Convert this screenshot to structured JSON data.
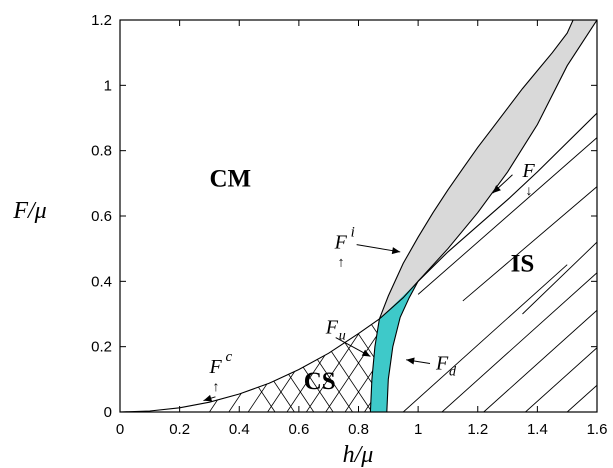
{
  "chart_data": {
    "type": "line",
    "xlabel": "h/μ",
    "ylabel": "F/μ",
    "xlim": [
      0,
      1.6
    ],
    "ylim": [
      0,
      1.2
    ],
    "x_ticks": [
      "0",
      "0.2",
      "0.4",
      "0.6",
      "0.8",
      "1",
      "1.2",
      "1.4",
      "1.6"
    ],
    "y_ticks": [
      "0",
      "0.2",
      "0.4",
      "0.6",
      "0.8",
      "1",
      "1.2"
    ],
    "grid": false,
    "regions": [
      {
        "label": "CM",
        "x": 0.37,
        "y": 0.69
      },
      {
        "label": "CS",
        "x": 0.67,
        "y": 0.07
      },
      {
        "label": "IS",
        "x": 1.35,
        "y": 0.43
      }
    ],
    "series": [
      {
        "key": "Fc",
        "x": [
          0,
          0.1,
          0.2,
          0.3,
          0.4,
          0.5,
          0.6,
          0.7,
          0.8,
          0.87
        ],
        "y": [
          0,
          0.003,
          0.013,
          0.03,
          0.055,
          0.088,
          0.13,
          0.18,
          0.24,
          0.285
        ]
      },
      {
        "key": "Fi",
        "x": [
          0.87,
          0.9,
          0.95,
          1.0,
          1.05,
          1.1,
          1.15,
          1.2,
          1.25,
          1.3,
          1.35,
          1.4,
          1.45,
          1.5,
          1.52
        ],
        "y": [
          0.285,
          0.355,
          0.455,
          0.535,
          0.61,
          0.68,
          0.745,
          0.81,
          0.87,
          0.93,
          0.99,
          1.045,
          1.1,
          1.16,
          1.2
        ]
      },
      {
        "key": "Fdown",
        "x": [
          0.87,
          0.95,
          1.0,
          1.1,
          1.2,
          1.3,
          1.4,
          1.5,
          1.6
        ],
        "y": [
          0.285,
          0.35,
          0.4,
          0.49,
          0.57,
          0.65,
          0.735,
          0.825,
          0.915
        ]
      },
      {
        "key": "Fu",
        "x": [
          0.84,
          0.845,
          0.855,
          0.87
        ],
        "y": [
          0,
          0.1,
          0.2,
          0.285
        ]
      },
      {
        "key": "Fd",
        "x": [
          0.895,
          0.9,
          0.915,
          0.94,
          0.97,
          1.0
        ],
        "y": [
          0,
          0.1,
          0.2,
          0.29,
          0.35,
          0.4
        ]
      },
      {
        "key": "IS_left",
        "x": [
          0.84,
          0.845,
          0.855,
          0.87
        ],
        "y": [
          0,
          0.1,
          0.2,
          0.285
        ]
      },
      {
        "key": "upper_band",
        "x": [
          1.0,
          1.1,
          1.2,
          1.3,
          1.4,
          1.5,
          1.6
        ],
        "y": [
          0.4,
          0.5,
          0.61,
          0.735,
          0.88,
          1.06,
          1.2
        ]
      }
    ],
    "annotations": [
      {
        "key": "Fc",
        "base": "F",
        "sup": "c",
        "arrow": "↑",
        "x": 0.3,
        "y": 0.12
      },
      {
        "key": "Fi",
        "base": "F",
        "sup": "i",
        "arrow": "↑",
        "x": 0.72,
        "y": 0.5
      },
      {
        "key": "Fdown",
        "base": "F",
        "arrow": "↓",
        "x": 1.35,
        "y": 0.72
      },
      {
        "key": "Fu",
        "base": "F",
        "sub": "u",
        "x": 0.69,
        "y": 0.24
      },
      {
        "key": "Fd",
        "base": "F",
        "sub": "d",
        "x": 1.06,
        "y": 0.13
      }
    ]
  }
}
